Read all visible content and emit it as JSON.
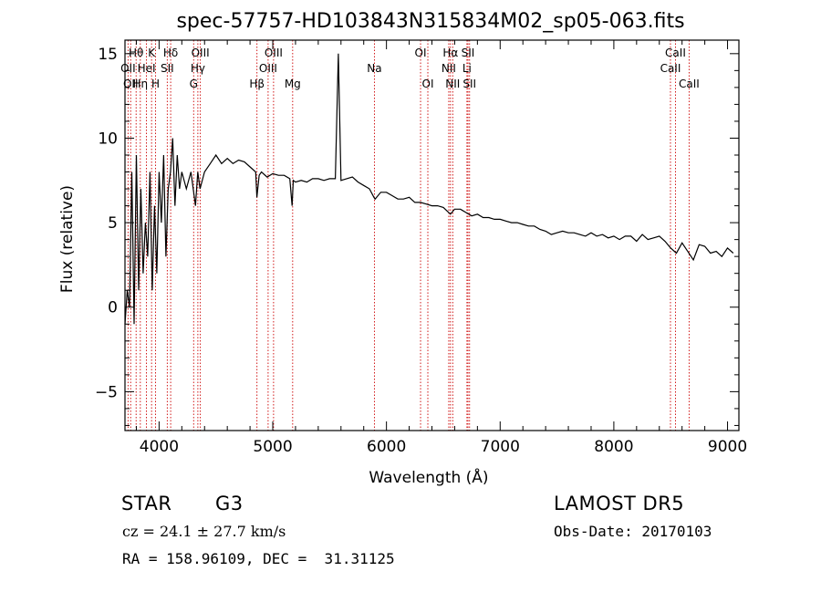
{
  "chart_data": {
    "type": "line",
    "title": "spec-57757-HD103843N315834M02_sp05-063.fits",
    "xlabel": "Wavelength (Å)",
    "ylabel": "Flux (relative)",
    "xlim": [
      3700,
      9100
    ],
    "ylim": [
      -7.3,
      15.8
    ],
    "xticks": [
      4000,
      5000,
      6000,
      7000,
      8000,
      9000
    ],
    "yticks": [
      -5,
      0,
      5,
      10,
      15
    ],
    "grid": false,
    "series": [
      {
        "x": [
          3700,
          3720,
          3740,
          3760,
          3780,
          3800,
          3820,
          3840,
          3860,
          3880,
          3900,
          3920,
          3940,
          3960,
          3980,
          4000,
          4020,
          4040,
          4060,
          4080,
          4100,
          4120,
          4140,
          4160,
          4180,
          4200,
          4240,
          4280,
          4320,
          4340,
          4360,
          4400,
          4450,
          4500,
          4550,
          4600,
          4650,
          4700,
          4750,
          4800,
          4850,
          4860,
          4880,
          4900,
          4950,
          5000,
          5050,
          5100,
          5150,
          5170,
          5180,
          5200,
          5250,
          5300,
          5350,
          5400,
          5450,
          5500,
          5550,
          5577,
          5600,
          5650,
          5700,
          5750,
          5800,
          5850,
          5890,
          5900,
          5950,
          6000,
          6050,
          6100,
          6150,
          6200,
          6250,
          6300,
          6350,
          6400,
          6450,
          6500,
          6563,
          6600,
          6650,
          6700,
          6750,
          6800,
          6850,
          6900,
          6950,
          7000,
          7050,
          7100,
          7150,
          7200,
          7250,
          7300,
          7350,
          7400,
          7450,
          7500,
          7550,
          7600,
          7650,
          7700,
          7750,
          7800,
          7850,
          7900,
          7950,
          8000,
          8050,
          8100,
          8150,
          8200,
          8250,
          8300,
          8350,
          8400,
          8450,
          8500,
          8550,
          8600,
          8650,
          8700,
          8750,
          8800,
          8850,
          8900,
          8950,
          9000,
          9050
        ],
        "y": [
          -1,
          1,
          0,
          8,
          -1,
          9,
          1,
          7,
          2,
          5,
          3,
          8,
          1,
          6,
          2,
          8,
          5,
          9,
          3,
          7,
          8,
          10,
          6,
          9,
          7,
          8,
          7,
          8,
          6,
          8,
          7,
          8,
          8.5,
          9,
          8.5,
          8.8,
          8.5,
          8.7,
          8.6,
          8.3,
          8,
          6.5,
          7.8,
          8,
          7.7,
          7.9,
          7.8,
          7.8,
          7.6,
          6,
          7.5,
          7.4,
          7.5,
          7.4,
          7.6,
          7.6,
          7.5,
          7.6,
          7.6,
          15,
          7.5,
          7.6,
          7.7,
          7.4,
          7.2,
          7,
          6.5,
          6.4,
          6.8,
          6.8,
          6.6,
          6.4,
          6.4,
          6.5,
          6.2,
          6.2,
          6.1,
          6,
          6,
          5.9,
          5.5,
          5.8,
          5.8,
          5.6,
          5.4,
          5.5,
          5.3,
          5.3,
          5.2,
          5.2,
          5.1,
          5,
          5,
          4.9,
          4.8,
          4.8,
          4.6,
          4.5,
          4.3,
          4.4,
          4.5,
          4.4,
          4.4,
          4.3,
          4.2,
          4.4,
          4.2,
          4.3,
          4.1,
          4.2,
          4,
          4.2,
          4.2,
          3.9,
          4.3,
          4,
          4.1,
          4.2,
          3.9,
          3.5,
          3.2,
          3.8,
          3.3,
          2.8,
          3.7,
          3.6,
          3.2,
          3.3,
          3,
          3.5,
          3.2
        ]
      }
    ],
    "spike": {
      "x": 5577,
      "y": 15
    },
    "lines": [
      {
        "wave": 3727,
        "label": "OII",
        "row": 1
      },
      {
        "wave": 3750,
        "label": "OII",
        "row": 2
      },
      {
        "wave": 3798,
        "label": "Hθ",
        "row": 0
      },
      {
        "wave": 3835,
        "label": "Hη",
        "row": 2
      },
      {
        "wave": 3889,
        "label": "HeI",
        "row": 1
      },
      {
        "wave": 3934,
        "label": "K",
        "row": 0
      },
      {
        "wave": 3969,
        "label": "H",
        "row": 2
      },
      {
        "wave": 4072,
        "label": "SII",
        "row": 1
      },
      {
        "wave": 4102,
        "label": "Hδ",
        "row": 0
      },
      {
        "wave": 4304,
        "label": "G",
        "row": 2
      },
      {
        "wave": 4341,
        "label": "Hγ",
        "row": 1
      },
      {
        "wave": 4363,
        "label": "OIII",
        "row": 0
      },
      {
        "wave": 4861,
        "label": "Hβ",
        "row": 2
      },
      {
        "wave": 4959,
        "label": "OIII",
        "row": 1
      },
      {
        "wave": 5007,
        "label": "OIII",
        "row": 0
      },
      {
        "wave": 5175,
        "label": "Mg",
        "row": 2
      },
      {
        "wave": 5894,
        "label": "Na",
        "row": 1
      },
      {
        "wave": 6300,
        "label": "OI",
        "row": 0
      },
      {
        "wave": 6364,
        "label": "OI",
        "row": 2
      },
      {
        "wave": 6548,
        "label": "NII",
        "row": 1
      },
      {
        "wave": 6563,
        "label": "Hα",
        "row": 0
      },
      {
        "wave": 6583,
        "label": "NII",
        "row": 2
      },
      {
        "wave": 6708,
        "label": "Li",
        "row": 1
      },
      {
        "wave": 6717,
        "label": "SII",
        "row": 0
      },
      {
        "wave": 6731,
        "label": "SII",
        "row": 2
      },
      {
        "wave": 8498,
        "label": "CaII",
        "row": 1
      },
      {
        "wave": 8542,
        "label": "CaII",
        "row": 0
      },
      {
        "wave": 8662,
        "label": "CaII",
        "row": 2
      }
    ]
  },
  "info": {
    "class_label": "STAR",
    "subclass": "G3",
    "redshift": "cz = 24.1 ± 27.7 km/s",
    "coords": "RA = 158.96109, DEC =  31.31125",
    "survey": "LAMOST DR5",
    "obs_date": "Obs-Date: 20170103"
  },
  "colors": {
    "line_marker": "#cc0000",
    "spectrum": "#000000",
    "axes": "#000000"
  }
}
